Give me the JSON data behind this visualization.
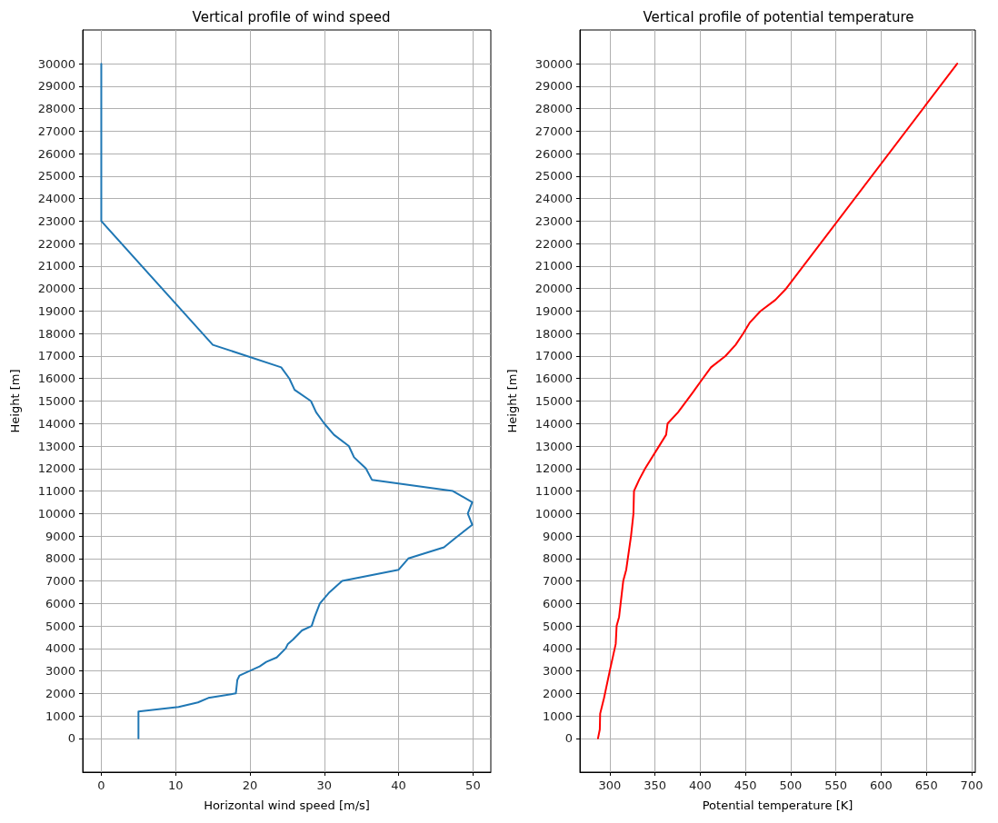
{
  "chart_data": [
    {
      "type": "line",
      "title": "Vertical profile of wind speed",
      "xlabel": "Horizontal wind speed [m/s]",
      "ylabel": "Height [m]",
      "series": [
        {
          "color": "#1f77b4",
          "x": [
            5,
            5,
            10.4,
            13,
            14.4,
            18.1,
            18.3,
            18.6,
            21.3,
            22.2,
            23.6,
            24.8,
            25.1,
            25.8,
            26.4,
            27,
            28.3,
            28.7,
            29.4,
            30.7,
            32.4,
            40,
            41.3,
            46.1,
            47.6,
            49.9,
            49.3,
            49.9,
            47.3,
            36.4,
            35.6,
            34,
            33.3,
            31.3,
            30,
            28.9,
            28.2,
            26,
            25.3,
            24.2,
            15,
            0,
            0
          ],
          "values": [
            0,
            1200,
            1400,
            1600,
            1800,
            2000,
            2600,
            2800,
            3200,
            3400,
            3600,
            4000,
            4200,
            4400,
            4600,
            4800,
            5000,
            5400,
            6000,
            6500,
            7000,
            7500,
            8000,
            8500,
            8900,
            9500,
            10000,
            10500,
            11000,
            11500,
            12000,
            12500,
            13000,
            13500,
            14000,
            14500,
            15000,
            15500,
            16000,
            16500,
            17500,
            23000,
            30000
          ]
        }
      ],
      "xlim": [
        -2.5,
        52.4
      ],
      "xticks": [
        0,
        10,
        20,
        30,
        40,
        50
      ],
      "ylim": [
        -1500,
        31500
      ],
      "yticks": [
        0,
        1000,
        2000,
        3000,
        4000,
        5000,
        6000,
        7000,
        8000,
        9000,
        10000,
        11000,
        12000,
        13000,
        14000,
        15000,
        16000,
        17000,
        18000,
        19000,
        20000,
        21000,
        22000,
        23000,
        24000,
        25000,
        26000,
        27000,
        28000,
        29000,
        30000
      ],
      "grid": true,
      "marker": "none",
      "line_style": "solid"
    },
    {
      "type": "line",
      "title": "Vertical profile of potential temperature",
      "xlabel": "Potential temperature [K]",
      "ylabel": "Height [m]",
      "series": [
        {
          "color": "#ff0000",
          "x": [
            287,
            289,
            289.4,
            293.7,
            300,
            306.6,
            307.6,
            310.3,
            314.9,
            318.2,
            323.5,
            326.2,
            326.8,
            332.5,
            339.1,
            362.3,
            363.9,
            375.5,
            392.1,
            401,
            411.9,
            427.8,
            439.1,
            447.4,
            455,
            466.6,
            483.1,
            495,
            684
          ],
          "values": [
            0,
            400,
            1100,
            1800,
            3000,
            4200,
            5000,
            5400,
            7000,
            7500,
            9000,
            10000,
            11000,
            11500,
            12000,
            13500,
            14000,
            14500,
            15400,
            15900,
            16500,
            17000,
            17500,
            18000,
            18500,
            19000,
            19500,
            20000,
            30000
          ]
        }
      ],
      "xlim": [
        267,
        704
      ],
      "xticks": [
        300,
        350,
        400,
        450,
        500,
        550,
        600,
        650,
        700
      ],
      "ylim": [
        -1500,
        31500
      ],
      "yticks": [
        0,
        1000,
        2000,
        3000,
        4000,
        5000,
        6000,
        7000,
        8000,
        9000,
        10000,
        11000,
        12000,
        13000,
        14000,
        15000,
        16000,
        17000,
        18000,
        19000,
        20000,
        21000,
        22000,
        23000,
        24000,
        25000,
        26000,
        27000,
        28000,
        29000,
        30000
      ],
      "grid": true,
      "marker": "none",
      "line_style": "solid"
    }
  ]
}
